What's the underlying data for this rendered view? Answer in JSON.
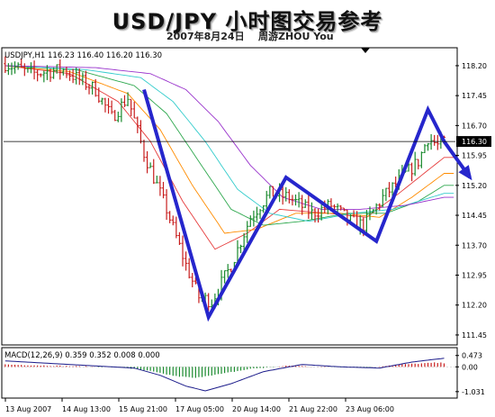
{
  "title": "USD/JPY 小时图交易参考",
  "subtitle_date": "2007年8月24日",
  "subtitle_author": "周游ZHOU You",
  "chart_data": {
    "type": "candlestick",
    "symbol_label": "USDJPY,H1  116.23 116.40 116.20 116.30",
    "current_price": 116.3,
    "current_price_label": "116.30",
    "ylim": [
      111.2,
      118.65
    ],
    "y_ticks": [
      {
        "value": 118.2,
        "label": "118.20"
      },
      {
        "value": 117.45,
        "label": "117.45"
      },
      {
        "value": 116.7,
        "label": "116.70"
      },
      {
        "value": 115.95,
        "label": "115.95"
      },
      {
        "value": 115.2,
        "label": "115.20"
      },
      {
        "value": 114.45,
        "label": "114.45"
      },
      {
        "value": 113.7,
        "label": "113.70"
      },
      {
        "value": 112.95,
        "label": "112.95"
      },
      {
        "value": 112.2,
        "label": "112.20"
      },
      {
        "value": 111.45,
        "label": "111.45"
      }
    ],
    "x_tick_labels": [
      "13 Aug 2007",
      "14 Aug 13:00",
      "15 Aug 21:00",
      "17 Aug 05:00",
      "20 Aug 14:00",
      "21 Aug 22:00",
      "23 Aug 06:00"
    ],
    "bar_count": 140,
    "price_path": [
      [
        0,
        118.25
      ],
      [
        8,
        118.0
      ],
      [
        18,
        118.1
      ],
      [
        28,
        117.6
      ],
      [
        33,
        116.9
      ],
      [
        38,
        117.4
      ],
      [
        43,
        116.0
      ],
      [
        50,
        114.6
      ],
      [
        56,
        113.2
      ],
      [
        60,
        112.4
      ],
      [
        64,
        112.3
      ],
      [
        70,
        113.2
      ],
      [
        76,
        114.4
      ],
      [
        82,
        115.0
      ],
      [
        88,
        114.9
      ],
      [
        95,
        114.5
      ],
      [
        101,
        114.7
      ],
      [
        107,
        114.3
      ],
      [
        111,
        114.2
      ],
      [
        117,
        114.9
      ],
      [
        123,
        115.4
      ],
      [
        128,
        115.8
      ],
      [
        131,
        116.4
      ],
      [
        134,
        116.2
      ],
      [
        136,
        116.3
      ]
    ],
    "moving_averages": [
      {
        "color": "#e63c3c",
        "path": [
          [
            0,
            118.2
          ],
          [
            20,
            118.0
          ],
          [
            35,
            117.3
          ],
          [
            45,
            116.3
          ],
          [
            55,
            114.8
          ],
          [
            65,
            113.6
          ],
          [
            75,
            114.0
          ],
          [
            85,
            114.6
          ],
          [
            100,
            114.5
          ],
          [
            112,
            114.4
          ],
          [
            122,
            115.0
          ],
          [
            136,
            115.9
          ]
        ]
      },
      {
        "color": "#ff8c00",
        "path": [
          [
            0,
            118.2
          ],
          [
            20,
            118.05
          ],
          [
            38,
            117.5
          ],
          [
            48,
            116.6
          ],
          [
            58,
            115.2
          ],
          [
            68,
            114.0
          ],
          [
            78,
            114.1
          ],
          [
            90,
            114.5
          ],
          [
            104,
            114.5
          ],
          [
            116,
            114.4
          ],
          [
            126,
            114.9
          ],
          [
            136,
            115.5
          ]
        ]
      },
      {
        "color": "#2ea84e",
        "path": [
          [
            0,
            118.2
          ],
          [
            22,
            118.1
          ],
          [
            40,
            117.7
          ],
          [
            50,
            117.0
          ],
          [
            60,
            115.8
          ],
          [
            70,
            114.6
          ],
          [
            80,
            114.2
          ],
          [
            92,
            114.3
          ],
          [
            106,
            114.5
          ],
          [
            118,
            114.5
          ],
          [
            128,
            114.8
          ],
          [
            136,
            115.2
          ]
        ]
      },
      {
        "color": "#33cccc",
        "path": [
          [
            0,
            118.2
          ],
          [
            25,
            118.1
          ],
          [
            42,
            117.9
          ],
          [
            52,
            117.3
          ],
          [
            62,
            116.3
          ],
          [
            72,
            115.1
          ],
          [
            82,
            114.5
          ],
          [
            94,
            114.3
          ],
          [
            108,
            114.5
          ],
          [
            120,
            114.6
          ],
          [
            136,
            115.0
          ]
        ]
      },
      {
        "color": "#9933cc",
        "path": [
          [
            0,
            118.2
          ],
          [
            28,
            118.15
          ],
          [
            45,
            118.0
          ],
          [
            56,
            117.6
          ],
          [
            66,
            116.8
          ],
          [
            76,
            115.7
          ],
          [
            86,
            114.9
          ],
          [
            98,
            114.6
          ],
          [
            110,
            114.6
          ],
          [
            124,
            114.7
          ],
          [
            136,
            114.9
          ]
        ]
      }
    ],
    "pattern_overlay": [
      [
        43,
        117.6
      ],
      [
        63,
        111.9
      ],
      [
        87,
        115.4
      ],
      [
        115,
        113.8
      ],
      [
        131,
        117.1
      ],
      [
        136,
        116.3
      ]
    ],
    "pattern_arrow_target": [
      144,
      115.4
    ],
    "macd": {
      "label": "MACD(12,26,9) 0.359 0.352 0.008 0.000",
      "ylim": [
        -1.3,
        0.8
      ],
      "y_ticks": [
        {
          "value": 0.473,
          "label": "0.473"
        },
        {
          "value": 0.0,
          "label": "0.00"
        },
        {
          "value": -1.031,
          "label": "-1.031"
        }
      ],
      "signal_path": [
        [
          0,
          0.25
        ],
        [
          20,
          0.1
        ],
        [
          40,
          -0.05
        ],
        [
          48,
          -0.35
        ],
        [
          56,
          -0.8
        ],
        [
          62,
          -1.0
        ],
        [
          70,
          -0.7
        ],
        [
          80,
          -0.2
        ],
        [
          92,
          0.1
        ],
        [
          104,
          0.0
        ],
        [
          116,
          -0.05
        ],
        [
          126,
          0.2
        ],
        [
          136,
          0.36
        ]
      ]
    }
  }
}
